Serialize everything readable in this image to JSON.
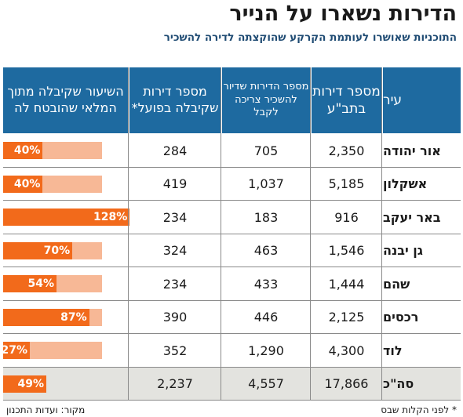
{
  "title": "הדירות נשארו על הנייר",
  "subtitle": "התוכניות שאושרו לעותמת הקרקע שהוקצתה לדירה להשכיר",
  "footnote": "* לפני הקלות שבס",
  "source": "מקור: ועדות התכנון",
  "colors": {
    "header": "#1e6aa0",
    "bar_fill": "#f26a1b",
    "bar_track": "#f7b896",
    "total_row_bg": "#e3e3df"
  },
  "chart_data": {
    "type": "table",
    "columns": [
      "עיר",
      "מספר דירות בתב\"ע",
      "מספר הדירות שדיור להשכיר צריכה לקבל",
      "מספר דירות שקיבלה בפועל*",
      "השיעור שקיבלה מתוך המלאי שהובטח לה"
    ],
    "rows": [
      {
        "city": "אור יהודה",
        "planned": "2,350",
        "required": "705",
        "received": "284",
        "pct_label": "40%",
        "pct": 40
      },
      {
        "city": "אשקלון",
        "planned": "5,185",
        "required": "1,037",
        "received": "419",
        "pct_label": "40%",
        "pct": 40
      },
      {
        "city": "באר יעקב",
        "planned": "916",
        "required": "183",
        "received": "234",
        "pct_label": "128%",
        "pct": 128
      },
      {
        "city": "גן יבנה",
        "planned": "1,546",
        "required": "463",
        "received": "324",
        "pct_label": "70%",
        "pct": 70
      },
      {
        "city": "שהם",
        "planned": "1,444",
        "required": "433",
        "received": "234",
        "pct_label": "54%",
        "pct": 54
      },
      {
        "city": "רכסים",
        "planned": "2,125",
        "required": "446",
        "received": "390",
        "pct_label": "87%",
        "pct": 87
      },
      {
        "city": "לוד",
        "planned": "4,300",
        "required": "1,290",
        "received": "352",
        "pct_label": "27%",
        "pct": 27
      },
      {
        "city": "סה\"כ",
        "planned": "17,866",
        "required": "4,557",
        "received": "2,237",
        "pct_label": "49%",
        "pct": 49
      }
    ]
  }
}
